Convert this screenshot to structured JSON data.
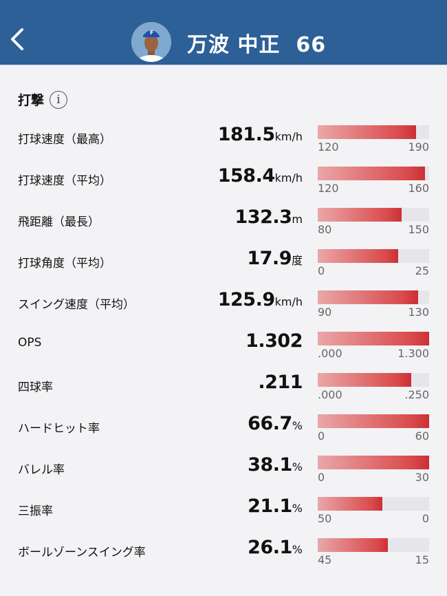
{
  "header": {
    "player_name": "万波 中正",
    "number": "66"
  },
  "section": {
    "title": "打撃"
  },
  "colors": {
    "header": "#2c6096",
    "bar_fill": "#d9494b",
    "bar_track": "#e6e6ea"
  },
  "stats": [
    {
      "label": "打球速度（最高）",
      "value": "181.5",
      "unit": "km/h",
      "min": "120",
      "max": "190",
      "fill": 0.88
    },
    {
      "label": "打球速度（平均）",
      "value": "158.4",
      "unit": "km/h",
      "min": "120",
      "max": "160",
      "fill": 0.96
    },
    {
      "label": "飛距離（最長）",
      "value": "132.3",
      "unit": "m",
      "min": "80",
      "max": "150",
      "fill": 0.75
    },
    {
      "label": "打球角度（平均）",
      "value": "17.9",
      "unit": "度",
      "min": "0",
      "max": "25",
      "fill": 0.72
    },
    {
      "label": "スイング速度（平均）",
      "value": "125.9",
      "unit": "km/h",
      "min": "90",
      "max": "130",
      "fill": 0.9
    },
    {
      "label": "OPS",
      "value": "1.302",
      "unit": "",
      "min": ".000",
      "max": "1.300",
      "fill": 1
    },
    {
      "label": "四球率",
      "value": ".211",
      "unit": "",
      "min": ".000",
      "max": ".250",
      "fill": 0.84
    },
    {
      "label": "ハードヒット率",
      "value": "66.7",
      "unit": "%",
      "min": "0",
      "max": "60",
      "fill": 1
    },
    {
      "label": "バレル率",
      "value": "38.1",
      "unit": "%",
      "min": "0",
      "max": "30",
      "fill": 1
    },
    {
      "label": "三振率",
      "value": "21.1",
      "unit": "%",
      "min": "50",
      "max": "0",
      "fill": 0.58
    },
    {
      "label": "ボールゾーンスイング率",
      "value": "26.1",
      "unit": "%",
      "min": "45",
      "max": "15",
      "fill": 0.63
    }
  ]
}
